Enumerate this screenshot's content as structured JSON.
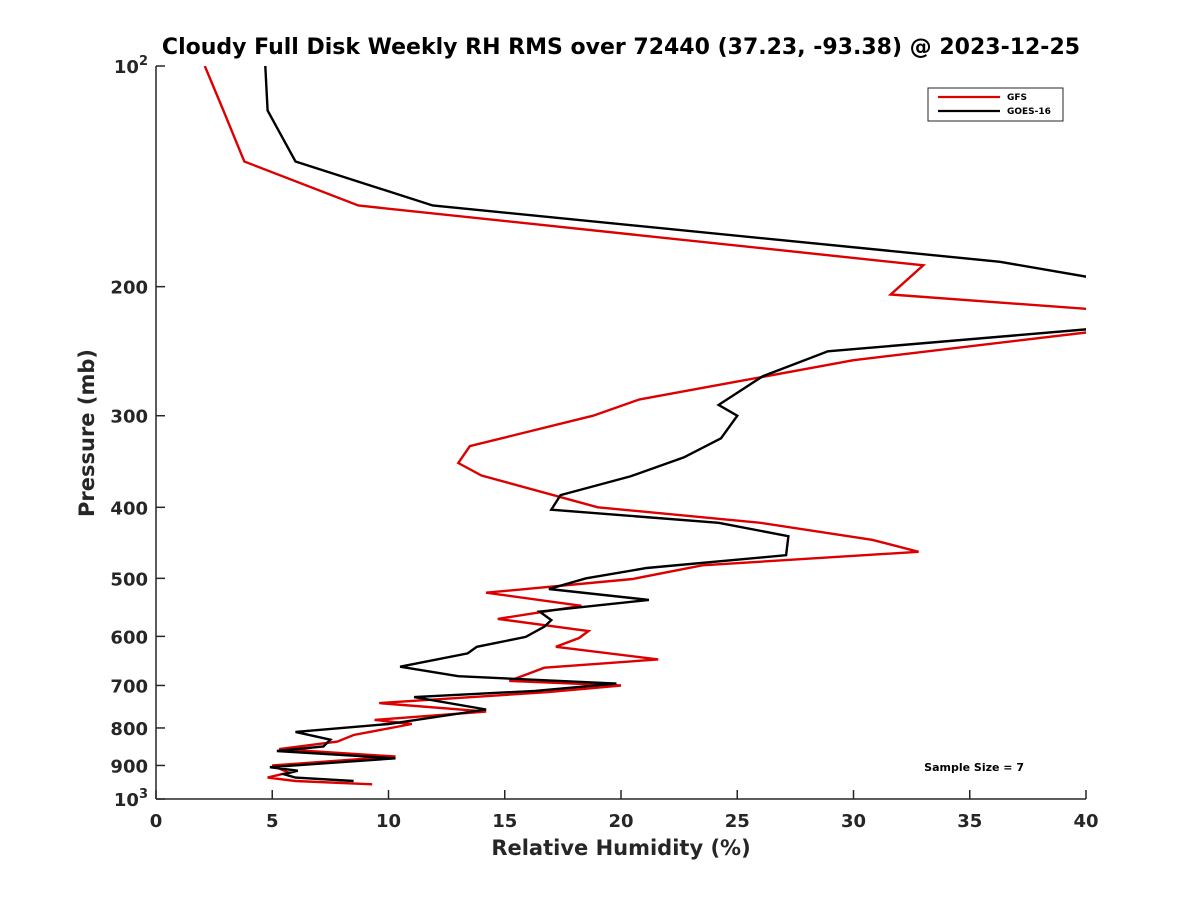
{
  "chart_data": {
    "type": "line",
    "title": "Cloudy Full Disk Weekly RH RMS over 72440 (37.23, -93.38) @ 2023-12-25",
    "xlabel": "Relative Humidity (%)",
    "ylabel": "Pressure (mb)",
    "xlim": [
      0,
      40
    ],
    "ylim": [
      100,
      1000
    ],
    "yscale": "log",
    "y_reversed": true,
    "x_ticks": [
      0,
      5,
      10,
      15,
      20,
      25,
      30,
      35,
      40
    ],
    "x_tick_labels": [
      "0",
      "5",
      "10",
      "15",
      "20",
      "25",
      "30",
      "35",
      "40"
    ],
    "y_ticks": [
      100,
      200,
      300,
      400,
      500,
      600,
      700,
      800,
      900,
      1000
    ],
    "y_tick_labels": [
      {
        "base": "10",
        "exp": "2"
      },
      {
        "base": "200"
      },
      {
        "base": "300"
      },
      {
        "base": "400"
      },
      {
        "base": "500"
      },
      {
        "base": "600"
      },
      {
        "base": "700"
      },
      {
        "base": "800"
      },
      {
        "base": "900"
      },
      {
        "base": "10",
        "exp": "3"
      }
    ],
    "grid": false,
    "legend_position": "top-right",
    "annotation": "Sample Size = 7",
    "series": [
      {
        "name": "GFS",
        "color": "#dd0000",
        "points": [
          [
            2.1,
            100
          ],
          [
            2.9,
            115
          ],
          [
            3.8,
            135
          ],
          [
            8.7,
            155
          ],
          [
            33.0,
            187
          ],
          [
            31.6,
            205
          ],
          [
            40.5,
            215
          ],
          [
            40.5,
            230
          ],
          [
            30.0,
            252
          ],
          [
            20.8,
            285
          ],
          [
            18.8,
            300
          ],
          [
            13.5,
            330
          ],
          [
            13.0,
            348
          ],
          [
            14.0,
            362
          ],
          [
            19.0,
            400
          ],
          [
            26.0,
            420
          ],
          [
            30.8,
            443
          ],
          [
            32.8,
            460
          ],
          [
            23.5,
            480
          ],
          [
            20.5,
            501
          ],
          [
            14.2,
            523
          ],
          [
            18.3,
            545
          ],
          [
            14.7,
            568
          ],
          [
            18.6,
            590
          ],
          [
            18.2,
            603
          ],
          [
            17.2,
            620
          ],
          [
            21.6,
            645
          ],
          [
            16.7,
            662
          ],
          [
            15.2,
            690
          ],
          [
            20.0,
            700
          ],
          [
            16.8,
            715
          ],
          [
            9.6,
            740
          ],
          [
            14.2,
            760
          ],
          [
            9.4,
            780
          ],
          [
            11.0,
            790
          ],
          [
            8.5,
            818
          ],
          [
            7.8,
            835
          ],
          [
            5.3,
            855
          ],
          [
            10.3,
            875
          ],
          [
            5.0,
            900
          ],
          [
            5.7,
            920
          ],
          [
            4.8,
            935
          ],
          [
            6.0,
            945
          ],
          [
            9.3,
            955
          ]
        ]
      },
      {
        "name": "GOES-16",
        "color": "#000000",
        "points": [
          [
            4.7,
            100
          ],
          [
            4.8,
            115
          ],
          [
            6.0,
            135
          ],
          [
            11.9,
            155
          ],
          [
            36.3,
            185
          ],
          [
            40.5,
            195
          ],
          [
            40.5,
            228
          ],
          [
            28.9,
            245
          ],
          [
            26.1,
            265
          ],
          [
            24.2,
            290
          ],
          [
            25.0,
            300
          ],
          [
            24.3,
            322
          ],
          [
            22.7,
            342
          ],
          [
            20.4,
            363
          ],
          [
            17.4,
            385
          ],
          [
            17.0,
            403
          ],
          [
            24.2,
            420
          ],
          [
            27.2,
            438
          ],
          [
            27.1,
            465
          ],
          [
            21.1,
            484
          ],
          [
            18.5,
            500
          ],
          [
            16.9,
            517
          ],
          [
            21.2,
            535
          ],
          [
            16.5,
            555
          ],
          [
            17.0,
            570
          ],
          [
            16.7,
            582
          ],
          [
            15.9,
            601
          ],
          [
            13.8,
            620
          ],
          [
            13.4,
            633
          ],
          [
            10.5,
            660
          ],
          [
            13.0,
            680
          ],
          [
            19.8,
            696
          ],
          [
            16.3,
            712
          ],
          [
            11.1,
            726
          ],
          [
            14.2,
            755
          ],
          [
            10.0,
            790
          ],
          [
            6.0,
            810
          ],
          [
            7.5,
            830
          ],
          [
            7.2,
            848
          ],
          [
            5.2,
            860
          ],
          [
            10.3,
            880
          ],
          [
            4.9,
            905
          ],
          [
            6.1,
            915
          ],
          [
            5.5,
            925
          ],
          [
            6.0,
            935
          ],
          [
            8.5,
            945
          ]
        ]
      }
    ]
  }
}
